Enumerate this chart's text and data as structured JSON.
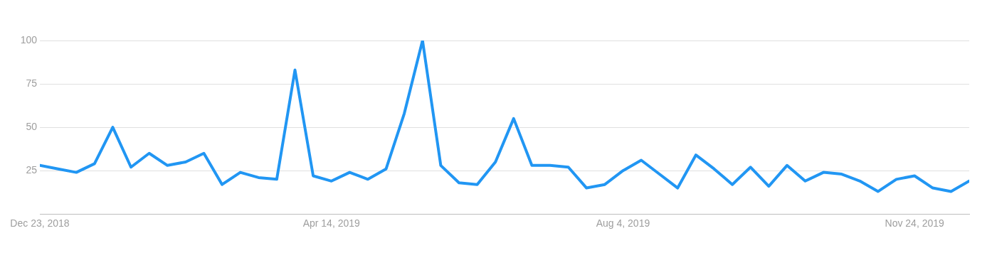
{
  "chart_data": {
    "type": "line",
    "x": [
      "2018-12-23",
      "2018-12-30",
      "2019-01-06",
      "2019-01-13",
      "2019-01-20",
      "2019-01-27",
      "2019-02-03",
      "2019-02-10",
      "2019-02-17",
      "2019-02-24",
      "2019-03-03",
      "2019-03-10",
      "2019-03-17",
      "2019-03-24",
      "2019-03-31",
      "2019-04-07",
      "2019-04-14",
      "2019-04-21",
      "2019-04-28",
      "2019-05-05",
      "2019-05-12",
      "2019-05-19",
      "2019-05-26",
      "2019-06-02",
      "2019-06-09",
      "2019-06-16",
      "2019-06-23",
      "2019-06-30",
      "2019-07-07",
      "2019-07-14",
      "2019-07-21",
      "2019-07-28",
      "2019-08-04",
      "2019-08-11",
      "2019-08-18",
      "2019-08-25",
      "2019-09-01",
      "2019-09-08",
      "2019-09-15",
      "2019-09-22",
      "2019-09-29",
      "2019-10-06",
      "2019-10-13",
      "2019-10-20",
      "2019-10-27",
      "2019-11-03",
      "2019-11-10",
      "2019-11-17",
      "2019-11-24",
      "2019-12-01",
      "2019-12-08",
      "2019-12-15"
    ],
    "series": [
      {
        "color": "#2196f3",
        "values": [
          28,
          26,
          24,
          29,
          50,
          27,
          35,
          28,
          30,
          35,
          17,
          24,
          21,
          20,
          83,
          22,
          19,
          24,
          20,
          26,
          58,
          100,
          28,
          18,
          17,
          30,
          55,
          28,
          28,
          27,
          15,
          17,
          25,
          31,
          23,
          15,
          34,
          26,
          17,
          27,
          16,
          28,
          19,
          24,
          23,
          19,
          13,
          20,
          22,
          15,
          13,
          19
        ]
      }
    ],
    "xlim": [
      "2018-12-23",
      "2019-12-15"
    ],
    "xticks": [
      {
        "value": "2018-12-23",
        "label": "Dec 23, 2018"
      },
      {
        "value": "2019-04-14",
        "label": "Apr 14, 2019"
      },
      {
        "value": "2019-08-04",
        "label": "Aug 4, 2019"
      },
      {
        "value": "2019-11-24",
        "label": "Nov 24, 2019"
      }
    ],
    "ylim": [
      0,
      100
    ],
    "yticks": [
      {
        "value": 0,
        "label": null
      },
      25,
      50,
      75,
      100
    ],
    "grid": "y"
  }
}
